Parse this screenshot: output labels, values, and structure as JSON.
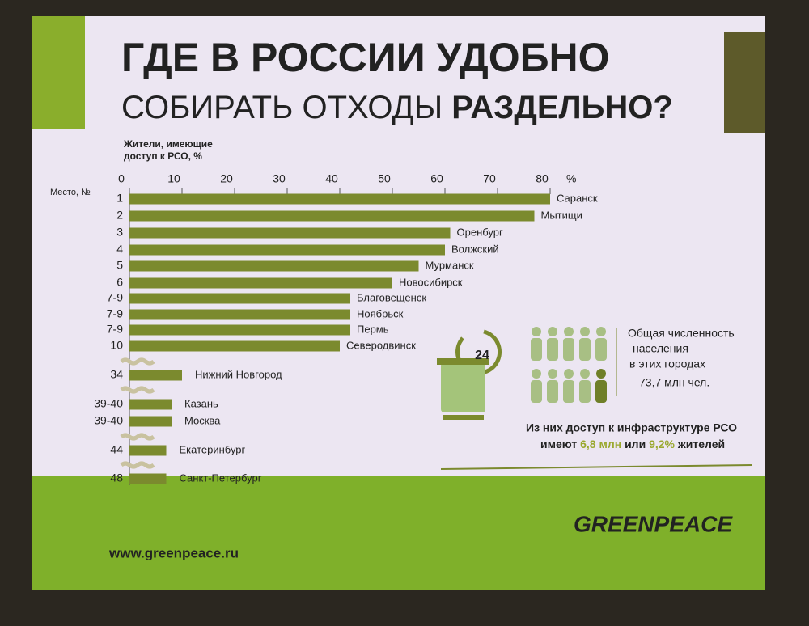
{
  "chart_data": {
    "type": "bar",
    "orientation": "horizontal",
    "title": "ГДЕ В РОССИИ УДОБНО",
    "subtitle": [
      "СОБИРАТЬ ОТХОДЫ",
      "РАЗДЕЛЬНО?"
    ],
    "xlabel": [
      "Жители, имеющие",
      "доступ к РСО, %"
    ],
    "x_unit": "%",
    "rank_label": "Место, №",
    "ranks": [
      "1",
      "2",
      "3",
      "4",
      "5",
      "6",
      "7-9",
      "7-9",
      "7-9",
      "10",
      "34",
      "39-40",
      "39-40",
      "44",
      "48"
    ],
    "categories": [
      "Саранск",
      "Мытищи",
      "Оренбург",
      "Волжский",
      "Мурманск",
      "Новосибирск",
      "Благовещенск",
      "Ноябрьск",
      "Пермь",
      "Северодвинск",
      "Нижний Новгород",
      "Казань",
      "Москва",
      "Екатеринбург",
      "Санкт-Петербург"
    ],
    "values": [
      80,
      77,
      61,
      60,
      55,
      50,
      42,
      42,
      42,
      40,
      10,
      8,
      8,
      7,
      7
    ],
    "color": "#7b8a2e",
    "xlim": [
      0,
      80
    ],
    "xticks": [
      0,
      10,
      20,
      30,
      40,
      50,
      60,
      70,
      80
    ],
    "grid": false
  },
  "info": {
    "icon_number": "24",
    "population_text": [
      "Общая численность",
      "населения",
      "в этих городах"
    ],
    "population_value": "73,7 млн чел.",
    "access_line1": "Из них доступ к инфраструктуре РСО",
    "access_line2": [
      "имеют",
      "6,8 млн",
      "или",
      "9,2%",
      "жителей"
    ]
  },
  "footer": {
    "url": "www.greenpeace.ru",
    "brand": "GREENPEACE"
  }
}
